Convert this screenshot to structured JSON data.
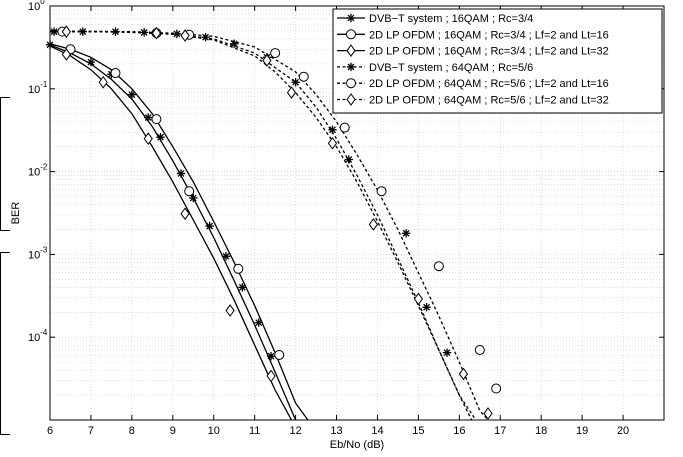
{
  "chart_data": {
    "type": "line",
    "title": "",
    "xlabel": "Eb/No (dB)",
    "ylabel": "BER",
    "xlim": [
      6,
      21
    ],
    "ylim": [
      1e-05,
      1
    ],
    "yscale": "log",
    "grid": true,
    "legend_position": "top-right",
    "x_tick_labels": [
      "6",
      "7",
      "8",
      "9",
      "10",
      "11",
      "12",
      "13",
      "14",
      "15",
      "16",
      "17",
      "18",
      "19",
      "20"
    ],
    "y_tick_labels": [
      {
        "base": "10",
        "exp": "0",
        "value": 1
      },
      {
        "base": "10",
        "exp": "-1",
        "value": 0.1
      },
      {
        "base": "10",
        "exp": "-2",
        "value": 0.01
      },
      {
        "base": "10",
        "exp": "-3",
        "value": 0.001
      },
      {
        "base": "10",
        "exp": "-4",
        "value": 0.0001
      }
    ],
    "series": [
      {
        "name": "DVB−T system ; 16QAM ; Rc=3/4",
        "marker": "star",
        "linestyle": "solid",
        "curve": [
          [
            6,
            0.34
          ],
          [
            6.5,
            0.27
          ],
          [
            7,
            0.2
          ],
          [
            7.5,
            0.13
          ],
          [
            8,
            0.075
          ],
          [
            8.5,
            0.035
          ],
          [
            9,
            0.0135
          ],
          [
            9.5,
            0.0048
          ],
          [
            10,
            0.0016
          ],
          [
            10.5,
            0.00048
          ],
          [
            11,
            0.00014
          ],
          [
            11.5,
            3.8e-05
          ],
          [
            12,
            1e-05
          ]
        ],
        "markers": [
          [
            6,
            0.34
          ],
          [
            6.5,
            0.28
          ],
          [
            7,
            0.21
          ],
          [
            7.5,
            0.15
          ],
          [
            8,
            0.085
          ],
          [
            8.4,
            0.045
          ],
          [
            8.7,
            0.026
          ],
          [
            9.2,
            0.0095
          ],
          [
            9.5,
            0.0048
          ],
          [
            9.9,
            0.0022
          ],
          [
            10.3,
            0.00095
          ],
          [
            10.7,
            0.0004
          ],
          [
            11.1,
            0.00015
          ],
          [
            11.4,
            5.9e-05
          ]
        ]
      },
      {
        "name": "2D LP OFDM ; 16QAM ; Rc=3/4 ; Lf=2 and Lt=16",
        "marker": "circle",
        "linestyle": "solid",
        "curve": [
          [
            6,
            0.35
          ],
          [
            6.5,
            0.3
          ],
          [
            7,
            0.24
          ],
          [
            7.5,
            0.17
          ],
          [
            8,
            0.1
          ],
          [
            8.5,
            0.05
          ],
          [
            9,
            0.02
          ],
          [
            9.5,
            0.0075
          ],
          [
            10,
            0.0025
          ],
          [
            10.5,
            0.0008
          ],
          [
            11,
            0.00024
          ],
          [
            11.5,
            6.5e-05
          ],
          [
            12,
            1.6e-05
          ],
          [
            12.3,
            1e-05
          ]
        ],
        "markers": [
          [
            6.5,
            0.3
          ],
          [
            7.6,
            0.155
          ],
          [
            8.6,
            0.043
          ],
          [
            9.4,
            0.0058
          ],
          [
            10.6,
            0.00067
          ],
          [
            11.6,
            6.1e-05
          ]
        ]
      },
      {
        "name": "2D LP OFDM ; 16QAM ; Rc=3/4 ; Lf=2 and Lt=32",
        "marker": "diamond",
        "linestyle": "solid",
        "curve": [
          [
            6,
            0.33
          ],
          [
            6.5,
            0.25
          ],
          [
            7,
            0.17
          ],
          [
            7.5,
            0.1
          ],
          [
            8,
            0.05
          ],
          [
            8.5,
            0.02
          ],
          [
            9,
            0.0075
          ],
          [
            9.5,
            0.0026
          ],
          [
            10,
            0.0009
          ],
          [
            10.5,
            0.00028
          ],
          [
            11,
            8e-05
          ],
          [
            11.5,
            2.3e-05
          ],
          [
            11.9,
            1e-05
          ]
        ],
        "markers": [
          [
            6.4,
            0.26
          ],
          [
            7.3,
            0.12
          ],
          [
            8.4,
            0.025
          ],
          [
            9.3,
            0.0031
          ],
          [
            10.4,
            0.00021
          ],
          [
            11.4,
            3.4e-05
          ]
        ]
      },
      {
        "name": "DVB−T system ; 64QAM ; Rc=5/6",
        "marker": "star",
        "linestyle": "dotted",
        "curve": [
          [
            6,
            0.49
          ],
          [
            7,
            0.49
          ],
          [
            8,
            0.485
          ],
          [
            9,
            0.46
          ],
          [
            10,
            0.4
          ],
          [
            11,
            0.27
          ],
          [
            12,
            0.12
          ],
          [
            12.5,
            0.06
          ],
          [
            13,
            0.025
          ],
          [
            13.5,
            0.009
          ],
          [
            14,
            0.003
          ],
          [
            14.5,
            0.0009
          ],
          [
            15,
            0.00026
          ],
          [
            15.5,
            7e-05
          ],
          [
            16,
            2e-05
          ],
          [
            16.3,
            1e-05
          ]
        ],
        "markers": [
          [
            6.1,
            0.49
          ],
          [
            6.8,
            0.49
          ],
          [
            7.6,
            0.49
          ],
          [
            8.3,
            0.48
          ],
          [
            9.1,
            0.46
          ],
          [
            9.8,
            0.42
          ],
          [
            10.5,
            0.35
          ],
          [
            11.3,
            0.24
          ],
          [
            12.0,
            0.12
          ],
          [
            12.9,
            0.032
          ],
          [
            13.3,
            0.014
          ],
          [
            14.7,
            0.0018
          ],
          [
            15.2,
            0.00023
          ],
          [
            15.7,
            6.5e-05
          ]
        ]
      },
      {
        "name": "2D LP OFDM ; 64QAM ; Rc=5/6 ; Lf=2 and Lt=16",
        "marker": "circle",
        "linestyle": "dotted",
        "curve": [
          [
            6,
            0.5
          ],
          [
            7,
            0.495
          ],
          [
            8,
            0.49
          ],
          [
            9,
            0.47
          ],
          [
            10,
            0.43
          ],
          [
            11,
            0.32
          ],
          [
            12,
            0.16
          ],
          [
            12.5,
            0.085
          ],
          [
            13,
            0.04
          ],
          [
            13.5,
            0.016
          ],
          [
            14,
            0.006
          ],
          [
            14.5,
            0.002
          ],
          [
            15,
            0.0006
          ],
          [
            15.5,
            0.00018
          ],
          [
            16,
            5e-05
          ],
          [
            16.5,
            1.3e-05
          ],
          [
            16.7,
            1e-05
          ]
        ],
        "markers": [
          [
            6.3,
            0.49
          ],
          [
            8.6,
            0.47
          ],
          [
            9.4,
            0.45
          ],
          [
            11.5,
            0.27
          ],
          [
            12.2,
            0.14
          ],
          [
            13.2,
            0.034
          ],
          [
            14.1,
            0.0058
          ],
          [
            15.5,
            0.00072
          ],
          [
            16.5,
            7e-05
          ],
          [
            16.9,
            2.4e-05
          ]
        ]
      },
      {
        "name": "2D LP OFDM ; 64QAM ; Rc=5/6 ; Lf=2 and Lt=32",
        "marker": "diamond",
        "linestyle": "dotted",
        "curve": [
          [
            6,
            0.49
          ],
          [
            7,
            0.49
          ],
          [
            8,
            0.48
          ],
          [
            9,
            0.455
          ],
          [
            10,
            0.39
          ],
          [
            11,
            0.25
          ],
          [
            11.5,
            0.16
          ],
          [
            12,
            0.09
          ],
          [
            12.5,
            0.045
          ],
          [
            13,
            0.02
          ],
          [
            13.5,
            0.0075
          ],
          [
            14,
            0.0025
          ],
          [
            14.5,
            0.0008
          ],
          [
            15,
            0.00024
          ],
          [
            15.5,
            7e-05
          ],
          [
            16,
            2e-05
          ],
          [
            16.4,
            1e-05
          ]
        ],
        "markers": [
          [
            6.4,
            0.49
          ],
          [
            8.6,
            0.47
          ],
          [
            9.3,
            0.44
          ],
          [
            11.3,
            0.22
          ],
          [
            11.9,
            0.09
          ],
          [
            12.9,
            0.022
          ],
          [
            13.9,
            0.0023
          ],
          [
            15.0,
            0.00029
          ],
          [
            16.1,
            3.6e-05
          ],
          [
            16.7,
            1.2e-05
          ]
        ]
      }
    ]
  }
}
